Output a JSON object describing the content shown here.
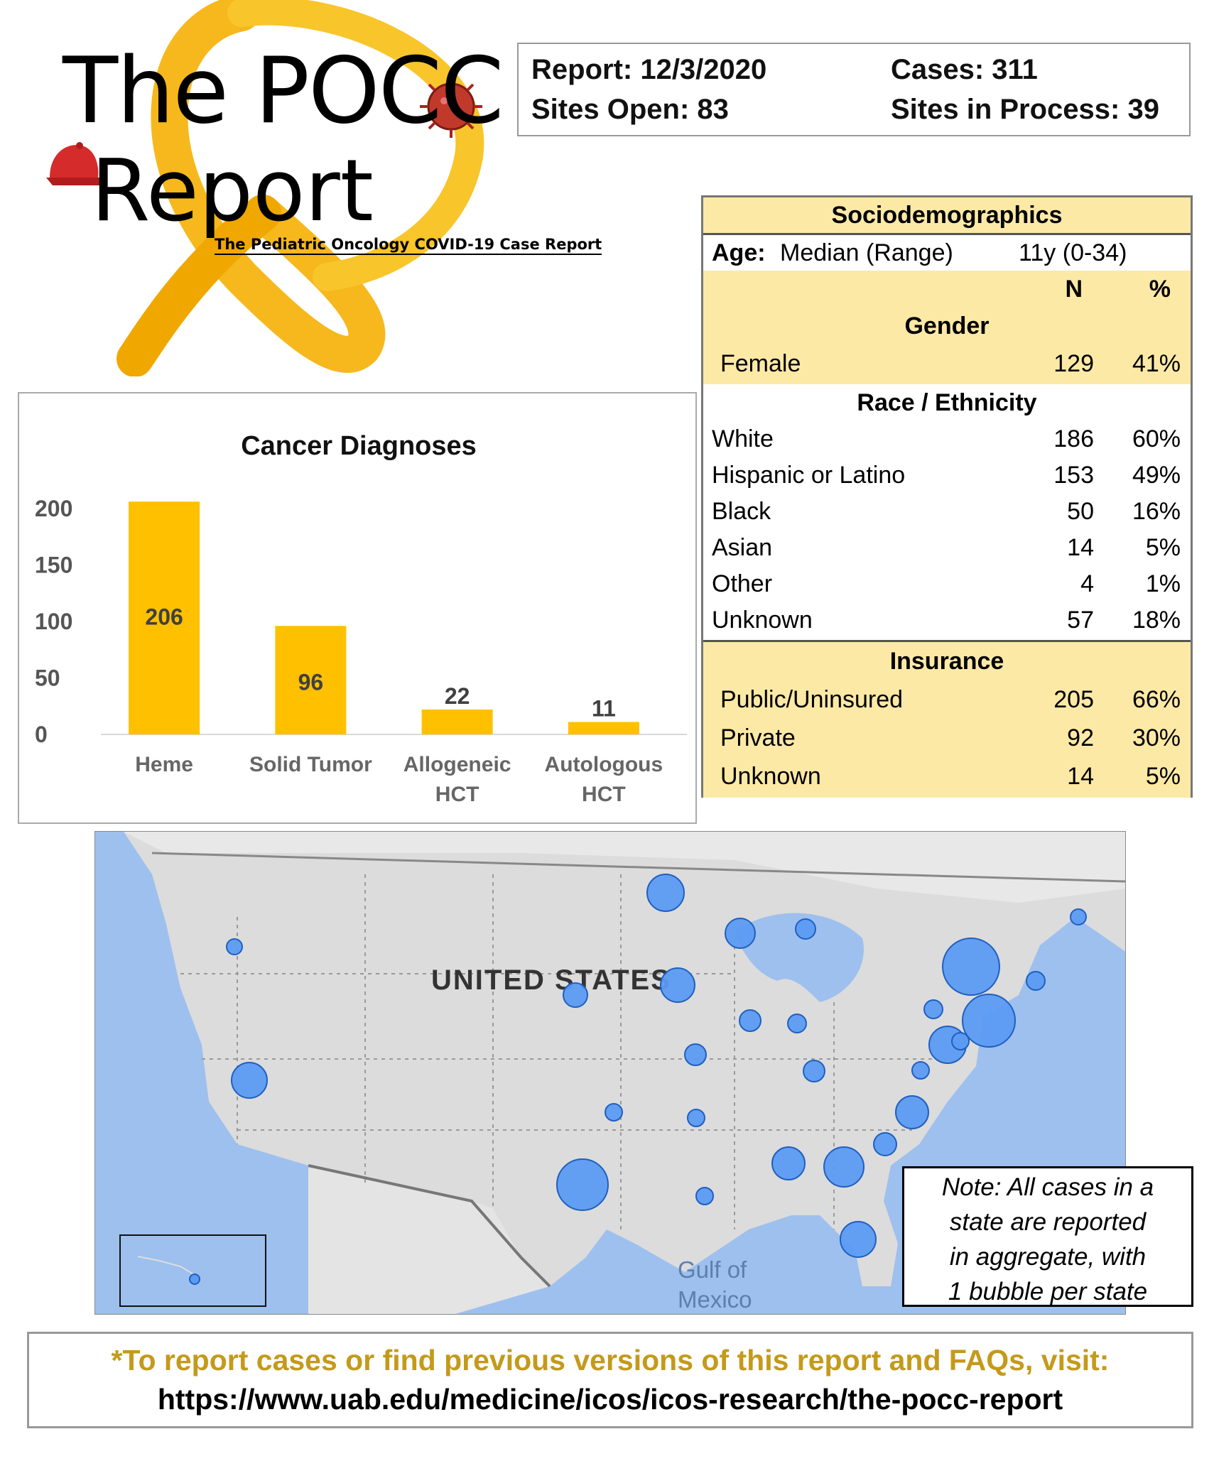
{
  "logo": {
    "line1": "The POCC",
    "line2": "Report",
    "subtitle": "The Pediatric Oncology COVID-19 Case Report"
  },
  "report_box": {
    "report_date": "Report: 12/3/2020",
    "cases": "Cases: 311",
    "sites_open": "Sites Open: 83",
    "sites_in_process": "Sites in Process: 39"
  },
  "socio": {
    "title": "Sociodemographics",
    "age_label": "Age:",
    "age_desc": "Median (Range)",
    "age_value": "11y (0-34)",
    "col_n": "N",
    "col_pct": "%",
    "gender_title": "Gender",
    "gender_rows": [
      {
        "label": "Female",
        "n": "129",
        "pct": "41%"
      }
    ],
    "race_title": "Race / Ethnicity",
    "race_rows": [
      {
        "label": "White",
        "n": "186",
        "pct": "60%"
      },
      {
        "label": "Hispanic or Latino",
        "n": "153",
        "pct": "49%"
      },
      {
        "label": "Black",
        "n": "50",
        "pct": "16%"
      },
      {
        "label": "Asian",
        "n": "14",
        "pct": "5%"
      },
      {
        "label": "Other",
        "n": "4",
        "pct": "1%"
      },
      {
        "label": "Unknown",
        "n": "57",
        "pct": "18%"
      }
    ],
    "insurance_title": "Insurance",
    "insurance_rows": [
      {
        "label": "Public/Uninsured",
        "n": "205",
        "pct": "66%"
      },
      {
        "label": "Private",
        "n": "92",
        "pct": "30%"
      },
      {
        "label": "Unknown",
        "n": "14",
        "pct": "5%"
      }
    ]
  },
  "chart_data": {
    "type": "bar",
    "title": "Cancer Diagnoses",
    "categories": [
      [
        "Heme"
      ],
      [
        "Solid Tumor"
      ],
      [
        "Allogeneic",
        "HCT"
      ],
      [
        "Autologous",
        "HCT"
      ]
    ],
    "values": [
      206,
      96,
      22,
      11
    ],
    "yticks": [
      0,
      50,
      100,
      150,
      200
    ],
    "ylim": [
      0,
      220
    ],
    "bar_color": "#ffc000"
  },
  "map": {
    "country_label": "UNITED STATES",
    "gulf_label_1": "Gulf of",
    "gulf_label_2": "Mexico",
    "bubble_color": "#5b9bf2",
    "note_lines": [
      "Note: All cases in a",
      "state are reported",
      "in aggregate, with",
      "1 bubble per state"
    ]
  },
  "footer": {
    "line1": "*To report cases or find previous versions of this report and FAQs, visit:",
    "line2": "https://www.uab.edu/medicine/icos/icos-research/the-pocc-report"
  }
}
